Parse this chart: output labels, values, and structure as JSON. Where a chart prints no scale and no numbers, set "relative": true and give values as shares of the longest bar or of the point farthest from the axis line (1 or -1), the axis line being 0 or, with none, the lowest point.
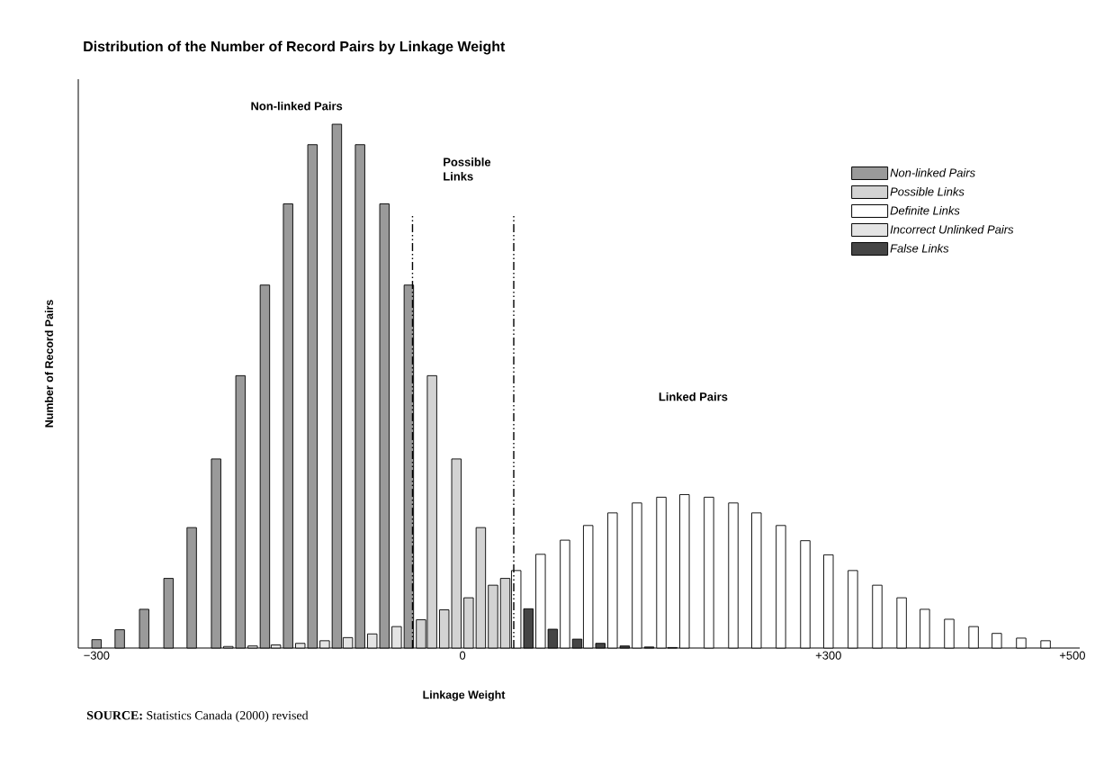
{
  "chart_data": {
    "type": "bar",
    "title": "Distribution of the Number of Record Pairs by Linkage Weight",
    "xlabel": "Linkage Weight",
    "ylabel": "Number of Record Pairs",
    "relative": true,
    "legend": "top right",
    "xlim": [
      -315,
      506
    ],
    "xticks": [
      {
        "value": -300,
        "label": "−300"
      },
      0,
      {
        "value": 300,
        "label": "+300"
      },
      {
        "value": 500,
        "label": "+500"
      }
    ],
    "series": [
      {
        "name": "Non-linked Pairs",
        "color": "#9a9a9a",
        "x": [
          -300,
          -281,
          -261,
          -241,
          -222,
          -202,
          -182,
          -162,
          -143,
          -123,
          -103,
          -84,
          -64,
          -44
        ],
        "values": [
          0.016,
          0.035,
          0.074,
          0.133,
          0.23,
          0.361,
          0.52,
          0.693,
          0.848,
          0.961,
          1,
          0.961,
          0.848,
          0.693
        ]
      },
      {
        "name": "Possible Links",
        "color": "#d3d3d3",
        "x": [
          -34,
          -25,
          -15,
          -5,
          5,
          15,
          25,
          35
        ],
        "values": [
          0.054,
          0.52,
          0.073,
          0.361,
          0.096,
          0.23,
          0.12,
          0.133
        ]
      },
      {
        "name": "Definite Links",
        "color": "#ffffff",
        "x": [
          44,
          64,
          84,
          103,
          123,
          143,
          163,
          182,
          202,
          222,
          241,
          261,
          281,
          300,
          320,
          340,
          360,
          379,
          399,
          419,
          438,
          458,
          478
        ],
        "values": [
          0.148,
          0.179,
          0.206,
          0.234,
          0.258,
          0.277,
          0.288,
          0.293,
          0.288,
          0.277,
          0.258,
          0.234,
          0.205,
          0.178,
          0.148,
          0.12,
          0.096,
          0.074,
          0.055,
          0.041,
          0.028,
          0.019,
          0.014
        ]
      },
      {
        "name": "Incorrect Unlinked Pairs",
        "color": "#e4e4e4",
        "x": [
          -192,
          -172,
          -153,
          -133,
          -113,
          -94,
          -74,
          -54
        ],
        "values": [
          0.003,
          0.004,
          0.006,
          0.009,
          0.014,
          0.02,
          0.027,
          0.041
        ]
      },
      {
        "name": "False Links",
        "color": "#454545",
        "x": [
          54,
          74,
          94,
          113,
          133,
          153,
          172
        ],
        "values": [
          0.075,
          0.036,
          0.017,
          0.009,
          0.004,
          0.002,
          0.001
        ]
      }
    ],
    "ref_lines": [
      {
        "axis": "x",
        "value": -41,
        "line_style": "dashed",
        "color": "#000000"
      },
      {
        "axis": "x",
        "value": 42,
        "line_style": "dashed",
        "color": "#000000"
      }
    ],
    "annotations": [
      "Non-linked Pairs",
      "Possible Links",
      "Linked Pairs",
      "**SOURCE:** Statistics Canada (2000) revised"
    ]
  }
}
